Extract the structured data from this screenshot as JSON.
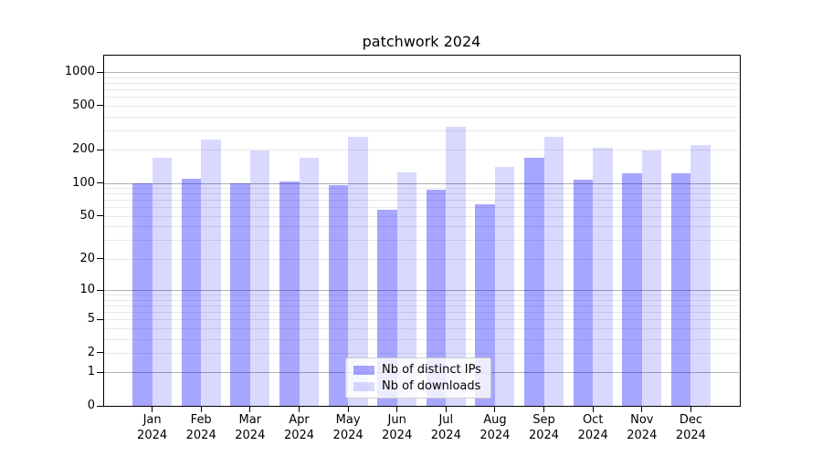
{
  "chart_data": {
    "type": "bar",
    "title": "patchwork 2024",
    "year_label": "2024",
    "categories": [
      "Jan",
      "Feb",
      "Mar",
      "Apr",
      "May",
      "Jun",
      "Jul",
      "Aug",
      "Sep",
      "Oct",
      "Nov",
      "Dec"
    ],
    "series": [
      {
        "name": "Nb of distinct IPs",
        "color": "rgba(0,0,255,0.35)",
        "hex_on_white": "#a6a6ff",
        "values": [
          100,
          110,
          100,
          103,
          96,
          57,
          87,
          64,
          170,
          107,
          123,
          123
        ]
      },
      {
        "name": "Nb of downloads",
        "color": "rgba(0,0,255,0.15)",
        "hex_on_white": "#d9d9ff",
        "values": [
          170,
          249,
          198,
          170,
          262,
          124,
          323,
          141,
          262,
          210,
          199,
          221
        ]
      }
    ],
    "yscale": "log1p",
    "ylim": [
      0,
      1440
    ],
    "y_tick_values": [
      0,
      1,
      2,
      5,
      10,
      20,
      50,
      100,
      200,
      500,
      1000
    ],
    "y_major_grid_values": [
      1,
      10,
      100,
      1000
    ],
    "y_minor_grid_bases": [
      1,
      10,
      100
    ],
    "grid": "both",
    "legend_position": "lower-center-inside",
    "colors": {
      "major_grid": "#b0b0b0",
      "minor_grid": "#e8e8e8",
      "axis": "#000000",
      "text": "#000000",
      "background": "#ffffff"
    }
  }
}
